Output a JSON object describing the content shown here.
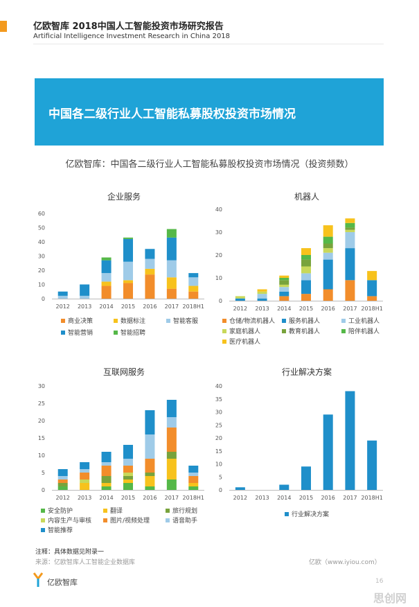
{
  "header": {
    "title": "亿欧智库 2018中国人工智能投资市场研究报告",
    "subtitle": "Artificial Intelligence Investment Research in China 2018"
  },
  "banner": {
    "text": "中国各二级行业人工智能私募股权投资市场情况"
  },
  "chart_subtitle": "亿欧智库：中国各二级行业人工智能私募股权投资市场情况（投资频数）",
  "chart_data": [
    {
      "type": "bar",
      "stacked": true,
      "title": "企业服务",
      "categories": [
        "2012",
        "2013",
        "2014",
        "2015",
        "2016",
        "2017",
        "2018H1"
      ],
      "ylim": [
        0,
        60
      ],
      "yticks": [
        0,
        10,
        20,
        30,
        40,
        50,
        60
      ],
      "legend_position": "bottom",
      "series": [
        {
          "name": "商业决策",
          "color": "#f28d2b",
          "values": [
            0,
            0,
            9,
            11,
            17,
            7,
            5
          ]
        },
        {
          "name": "数据标注",
          "color": "#f7c21d",
          "values": [
            0,
            0,
            3,
            2,
            4,
            8,
            4
          ]
        },
        {
          "name": "智能客服",
          "color": "#9fcbe8",
          "values": [
            2,
            2,
            6,
            13,
            7,
            12,
            6
          ]
        },
        {
          "name": "智能营销",
          "color": "#1f8fca",
          "values": [
            3,
            8,
            9,
            16,
            7,
            16,
            3
          ]
        },
        {
          "name": "智能招聘",
          "color": "#55b848",
          "values": [
            0,
            0,
            2,
            1,
            0,
            6,
            0
          ]
        }
      ]
    },
    {
      "type": "bar",
      "stacked": true,
      "title": "机器人",
      "categories": [
        "2012",
        "2013",
        "2014",
        "2015",
        "2016",
        "2017",
        "2018H1"
      ],
      "ylim": [
        0,
        40
      ],
      "yticks": [
        0,
        10,
        20,
        30,
        40
      ],
      "legend_position": "bottom",
      "series": [
        {
          "name": "仓储/物流机器人",
          "color": "#f28d2b",
          "values": [
            0,
            0,
            2,
            3,
            5,
            9,
            2
          ]
        },
        {
          "name": "服务机器人",
          "color": "#1f8fca",
          "values": [
            1,
            1,
            2,
            6,
            13,
            14,
            7
          ]
        },
        {
          "name": "工业机器人",
          "color": "#9fcbe8",
          "values": [
            0,
            2,
            2,
            3,
            3,
            7,
            0
          ]
        },
        {
          "name": "家庭机器人",
          "color": "#c8d85a",
          "values": [
            1,
            1,
            1,
            3,
            2,
            1,
            0
          ]
        },
        {
          "name": "教育机器人",
          "color": "#78a33c",
          "values": [
            0,
            0,
            2,
            3,
            2,
            1,
            0
          ]
        },
        {
          "name": "陪伴机器人",
          "color": "#55b848",
          "values": [
            0,
            0,
            1,
            2,
            3,
            2,
            0
          ]
        },
        {
          "name": "医疗机器人",
          "color": "#f7c21d",
          "values": [
            0,
            1,
            1,
            3,
            5,
            2,
            4
          ]
        }
      ]
    },
    {
      "type": "bar",
      "stacked": true,
      "title": "互联网服务",
      "categories": [
        "2012",
        "2013",
        "2014",
        "2015",
        "2016",
        "2017",
        "2018H1"
      ],
      "ylim": [
        0,
        30
      ],
      "yticks": [
        0,
        5,
        10,
        15,
        20,
        25,
        30
      ],
      "legend_position": "bottom",
      "series": [
        {
          "name": "安全防护",
          "color": "#55b848",
          "values": [
            1,
            0,
            1,
            2,
            1,
            3,
            1
          ]
        },
        {
          "name": "翻译",
          "color": "#f7c21d",
          "values": [
            0,
            2,
            1,
            1,
            3,
            6,
            1
          ]
        },
        {
          "name": "旅行规划",
          "color": "#78a33c",
          "values": [
            1,
            0,
            2,
            1,
            1,
            2,
            0
          ]
        },
        {
          "name": "内容生产与审核",
          "color": "#c8d85a",
          "values": [
            0,
            1,
            0,
            1,
            0,
            0,
            0
          ]
        },
        {
          "name": "图片/视频处理",
          "color": "#f28d2b",
          "values": [
            1,
            2,
            3,
            2,
            4,
            7,
            2
          ]
        },
        {
          "name": "语音助手",
          "color": "#9fcbe8",
          "values": [
            1,
            1,
            1,
            2,
            7,
            3,
            1
          ]
        },
        {
          "name": "智能推荐",
          "color": "#1f8fca",
          "values": [
            2,
            2,
            3,
            4,
            7,
            5,
            2
          ]
        }
      ]
    },
    {
      "type": "bar",
      "title": "行业解决方案",
      "categories": [
        "2012",
        "2013",
        "2014",
        "2015",
        "2016",
        "2017",
        "2018H1"
      ],
      "ylim": [
        0,
        40
      ],
      "yticks": [
        0,
        5,
        10,
        15,
        20,
        25,
        30,
        35,
        40
      ],
      "legend_position": "bottom",
      "series": [
        {
          "name": "行业解决方案",
          "color": "#1f8fca",
          "values": [
            1,
            0,
            2,
            9,
            29,
            38,
            19
          ]
        }
      ]
    }
  ],
  "footer": {
    "note": "注释：具体数据见附录一",
    "source": "来源：亿欧智库人工智能企业数据库",
    "site": "亿欧（www.iyiou.com）",
    "logo_text": "亿欧智库",
    "page": "16",
    "watermark": "思创网"
  },
  "colors": {
    "accent": "#1fa3d7",
    "orange": "#f39a1e"
  }
}
